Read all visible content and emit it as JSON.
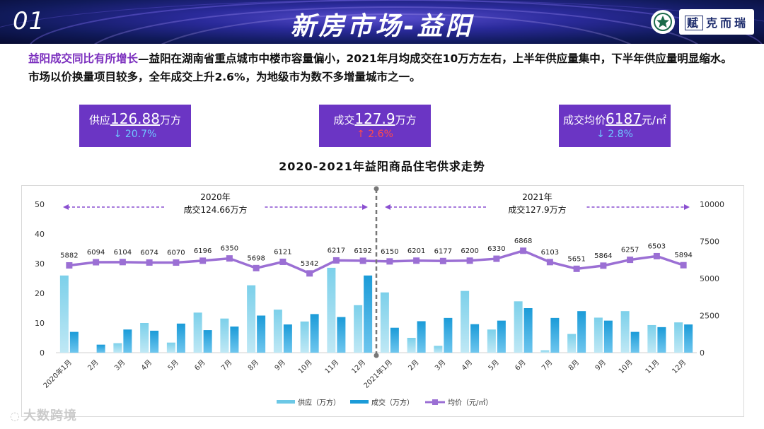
{
  "header": {
    "page_number": "01",
    "title": "新房市场-益阳",
    "logo_text": "克而瑞",
    "logo_mark": "赋",
    "colors": {
      "accent": "#6b35c4",
      "highlight": "#7b2fbe",
      "down": "#6fc7ff",
      "up": "#ff4b4b"
    }
  },
  "lead": {
    "highlight": "益阳成交同比有所增长",
    "text": "—益阳在湖南省重点城市中楼市容量偏小，2021年月均成交在10万方左右，上半年供应量集中，下半年供应量明显缩水。市场以价换量项目较多，全年成交上升2.6%，为地级市为数不多增量城市之一。"
  },
  "kpis": [
    {
      "label": "供应",
      "value": "126.88",
      "unit": "万方",
      "change": "↓ 20.7%",
      "direction": "down"
    },
    {
      "label": "成交",
      "value": "127.9",
      "unit": "万方",
      "change": "↑ 2.6%",
      "direction": "up"
    },
    {
      "label": "成交均价",
      "value": "6187",
      "unit": "元/㎡",
      "change": "↓ 2.8%",
      "direction": "down"
    }
  ],
  "watermark": "大数跨境",
  "chart_data": {
    "type": "bar",
    "title": "2020-2021年益阳商品住宅供求走势",
    "categories": [
      "2020年1月",
      "2月",
      "3月",
      "4月",
      "5月",
      "6月",
      "7月",
      "8月",
      "9月",
      "10月",
      "11月",
      "12月",
      "2021年1月",
      "2月",
      "3月",
      "4月",
      "5月",
      "6月",
      "7月",
      "8月",
      "9月",
      "10月",
      "11月",
      "12月"
    ],
    "series": [
      {
        "name": "供应（万方）",
        "type": "bar",
        "axis": "left",
        "color": "#6cc8e6",
        "values": [
          26,
          0,
          3.2,
          10,
          3.4,
          13.5,
          11.5,
          22.7,
          14.5,
          10.5,
          28.6,
          16,
          20.3,
          5,
          2.3,
          20.8,
          7.8,
          17.3,
          0.8,
          6.3,
          11.8,
          14,
          9.3,
          10.2
        ]
      },
      {
        "name": "成交（万方）",
        "type": "bar",
        "axis": "left",
        "color": "#1b9bd8",
        "values": [
          7,
          2.7,
          7.8,
          7.4,
          9.8,
          7.6,
          8.8,
          12.5,
          9.5,
          13,
          12,
          26,
          8.4,
          10.6,
          11.7,
          9.6,
          10.8,
          15,
          11.7,
          14,
          10.8,
          7,
          8.6,
          9.5
        ]
      },
      {
        "name": "均价（元/㎡）",
        "type": "line",
        "axis": "right",
        "color": "#9b6fd4",
        "values": [
          5882,
          6094,
          6104,
          6074,
          6070,
          6196,
          6350,
          5698,
          6121,
          5342,
          6217,
          6192,
          6150,
          6201,
          6177,
          6200,
          6330,
          6868,
          6103,
          5651,
          5864,
          6257,
          6503,
          5894
        ]
      }
    ],
    "y_left": {
      "min": 0,
      "max": 50,
      "ticks": [
        "0",
        "10",
        "20",
        "30",
        "40",
        "50"
      ]
    },
    "y_right": {
      "min": 0,
      "max": 10000,
      "ticks": [
        "0",
        "2500",
        "5000",
        "7500",
        "10000"
      ]
    },
    "annotations": [
      {
        "year": "2020年",
        "text": "成交124.66万方"
      },
      {
        "year": "2021年",
        "text": "成交127.9万方"
      }
    ],
    "legend": {
      "position": "bottom",
      "items": [
        "供应（万方）",
        "成交（万方）",
        "均价（元/㎡）"
      ]
    },
    "grid": false
  }
}
